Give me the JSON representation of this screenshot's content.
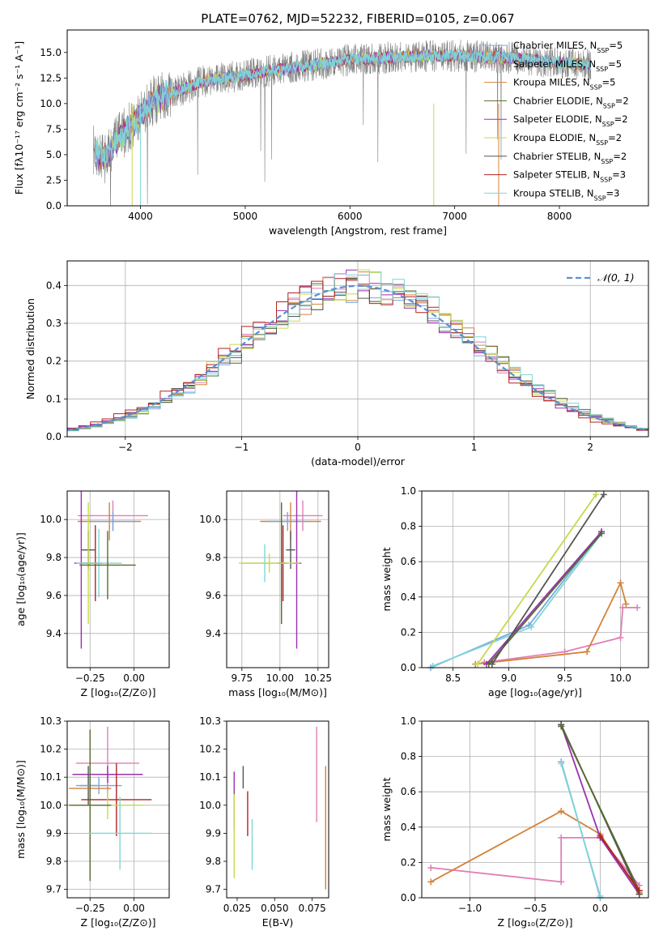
{
  "colors": {
    "c1": "#7aa6e0",
    "c2": "#e07fb5",
    "c3": "#d4823a",
    "c4": "#556b2f",
    "c5": "#9b30b0",
    "c6": "#c9d84a",
    "c7": "#555555",
    "c8": "#b22222",
    "c9": "#7fd6d6",
    "gauss": "#5b8fd6",
    "data": "#808080"
  },
  "chart_data": [
    {
      "id": "spectrum",
      "type": "line",
      "title": "PLATE=0762, MJD=52232, FIBERID=0105, z=0.067",
      "xlabel": "wavelength [Angstrom, rest frame]",
      "ylabel": "Flux [fλ10⁻¹⁷ erg cm⁻² s⁻¹ A⁻¹]",
      "xlim": [
        3300,
        8850
      ],
      "ylim": [
        0,
        17.2
      ],
      "xticks": [
        "4000",
        "5000",
        "6000",
        "7000",
        "8000"
      ],
      "yticks": [
        "0.0",
        "2.5",
        "5.0",
        "7.5",
        "10.0",
        "12.5",
        "15.0"
      ],
      "legend_position": "right",
      "series": [
        {
          "name": "Chabrier MILES, N",
          "nssp": "5",
          "color": "c1"
        },
        {
          "name": "Salpeter MILES, N",
          "nssp": "5",
          "color": "c2"
        },
        {
          "name": "Kroupa MILES, N",
          "nssp": "5",
          "color": "c3"
        },
        {
          "name": "Chabrier ELODIE, N",
          "nssp": "2",
          "color": "c4"
        },
        {
          "name": "Salpeter ELODIE, N",
          "nssp": "2",
          "color": "c5"
        },
        {
          "name": "Kroupa ELODIE, N",
          "nssp": "2",
          "color": "c6"
        },
        {
          "name": "Chabrier STELIB, N",
          "nssp": "2",
          "color": "c7"
        },
        {
          "name": "Salpeter STELIB, N",
          "nssp": "3",
          "color": "c8"
        },
        {
          "name": "Kroupa STELIB, N",
          "nssp": "3",
          "color": "c9"
        }
      ],
      "legend_eq": "=",
      "legend_sub": "SSP",
      "continuum": [
        [
          3550,
          5.5
        ],
        [
          3650,
          4.5
        ],
        [
          3800,
          6.8
        ],
        [
          3950,
          8.2
        ],
        [
          4100,
          10.2
        ],
        [
          4300,
          11.0
        ],
        [
          4600,
          12.2
        ],
        [
          5000,
          12.8
        ],
        [
          5500,
          13.6
        ],
        [
          6000,
          14.3
        ],
        [
          6500,
          14.6
        ],
        [
          7000,
          14.7
        ],
        [
          7500,
          14.5
        ],
        [
          8000,
          14.0
        ],
        [
          8300,
          13.8
        ]
      ]
    },
    {
      "id": "residuals",
      "type": "histogram",
      "xlabel": "(data-model)/error",
      "ylabel": "Normed distribution",
      "xlim": [
        -2.5,
        2.5
      ],
      "ylim": [
        0,
        0.465
      ],
      "xticks": [
        "−2",
        "−1",
        "0",
        "1",
        "2"
      ],
      "yticks": [
        "0.0",
        "0.1",
        "0.2",
        "0.3",
        "0.4"
      ],
      "grid": true,
      "legend_label": "𝒩(0, 1)",
      "legend_position": "top-right",
      "bin_width": 0.1
    },
    {
      "id": "age-vs-z",
      "type": "scatter",
      "xlabel": "Z [log₁₀(Z/Z⊙)]",
      "ylabel": "age  [log₁₀(age/yr)]",
      "xlim": [
        -0.38,
        0.2
      ],
      "ylim": [
        9.22,
        10.15
      ],
      "xticks": [
        "−0.25",
        "0.00"
      ],
      "yticks": [
        "9.4",
        "9.6",
        "9.8",
        "10.0"
      ],
      "grid": true,
      "points": [
        {
          "x": -0.12,
          "y": 10.02,
          "xerr": 0.2,
          "yerr": 0.08,
          "color": "c2"
        },
        {
          "x": -0.14,
          "y": 9.99,
          "xerr": 0.18,
          "yerr": 0.1,
          "color": "c3"
        },
        {
          "x": -0.12,
          "y": 9.99,
          "xerr": 0.13,
          "yerr": 0.05,
          "color": "c1"
        },
        {
          "x": -0.26,
          "y": 9.84,
          "xerr": 0.04,
          "yerr": 0.1,
          "color": "c7"
        },
        {
          "x": -0.22,
          "y": 9.77,
          "xerr": 0.04,
          "yerr": 0.2,
          "color": "c8"
        },
        {
          "x": -0.26,
          "y": 9.77,
          "xerr": 0.04,
          "yerr": 0.32,
          "color": "c6"
        },
        {
          "x": -0.3,
          "y": 9.77,
          "xerr": 0.04,
          "yerr": 0.45,
          "color": "c5"
        },
        {
          "x": -0.2,
          "y": 9.77,
          "xerr": 0.13,
          "yerr": 0.18,
          "color": "c9"
        },
        {
          "x": -0.15,
          "y": 9.76,
          "xerr": 0.16,
          "yerr": 0.18,
          "color": "c4"
        }
      ]
    },
    {
      "id": "age-vs-mass",
      "type": "scatter",
      "xlabel": "mass [log₁₀(M/M⊙)]",
      "ylabel": "",
      "xlim": [
        9.65,
        10.32
      ],
      "ylim": [
        9.22,
        10.15
      ],
      "xticks": [
        "9.75",
        "10.00",
        "10.25"
      ],
      "yticks": [
        "9.4",
        "9.6",
        "9.8",
        "10.0"
      ],
      "grid": true,
      "points": [
        {
          "x": 10.15,
          "y": 10.02,
          "xerr": 0.13,
          "yerr": 0.08,
          "color": "c2"
        },
        {
          "x": 10.07,
          "y": 9.99,
          "xerr": 0.2,
          "yerr": 0.1,
          "color": "c3"
        },
        {
          "x": 10.05,
          "y": 9.99,
          "xerr": 0.13,
          "yerr": 0.05,
          "color": "c1"
        },
        {
          "x": 10.07,
          "y": 9.84,
          "xerr": 0.03,
          "yerr": 0.1,
          "color": "c7"
        },
        {
          "x": 10.02,
          "y": 9.77,
          "xerr": 0.03,
          "yerr": 0.2,
          "color": "c8"
        },
        {
          "x": 10.01,
          "y": 9.77,
          "xerr": 0.03,
          "yerr": 0.32,
          "color": "c4"
        },
        {
          "x": 10.11,
          "y": 9.77,
          "xerr": 0.03,
          "yerr": 0.45,
          "color": "c5"
        },
        {
          "x": 9.9,
          "y": 9.77,
          "xerr": 0.15,
          "yerr": 0.1,
          "color": "c9"
        },
        {
          "x": 9.93,
          "y": 9.77,
          "xerr": 0.2,
          "yerr": 0.05,
          "color": "c6"
        }
      ]
    },
    {
      "id": "weight-vs-age",
      "type": "line",
      "xlabel": "age  [log₁₀(age/yr)]",
      "ylabel": "mass weight",
      "xlim": [
        8.22,
        10.25
      ],
      "ylim": [
        0,
        1
      ],
      "xticks": [
        "8.5",
        "9.0",
        "9.5",
        "10.0"
      ],
      "yticks": [
        "0.0",
        "0.2",
        "0.4",
        "0.6",
        "0.8",
        "1.0"
      ],
      "grid": true,
      "series": [
        {
          "color": "c1",
          "x": [
            8.3,
            9.18,
            9.83
          ],
          "y": [
            0.0,
            0.24,
            0.77
          ]
        },
        {
          "color": "c9",
          "x": [
            8.32,
            9.2,
            9.83
          ],
          "y": [
            0.01,
            0.23,
            0.76
          ]
        },
        {
          "color": "c2",
          "x": [
            8.78,
            9.5,
            10.0,
            10.02,
            10.15
          ],
          "y": [
            0.03,
            0.09,
            0.17,
            0.34,
            0.34
          ]
        },
        {
          "color": "c3",
          "x": [
            8.7,
            9.7,
            10.0,
            10.05
          ],
          "y": [
            0.02,
            0.09,
            0.48,
            0.36
          ]
        },
        {
          "color": "c5",
          "x": [
            8.8,
            9.83
          ],
          "y": [
            0.02,
            0.77
          ]
        },
        {
          "color": "c4",
          "x": [
            8.82,
            9.83
          ],
          "y": [
            0.02,
            0.76
          ]
        },
        {
          "color": "c6",
          "x": [
            8.72,
            9.78
          ],
          "y": [
            0.02,
            0.98
          ]
        },
        {
          "color": "c7",
          "x": [
            8.85,
            9.85
          ],
          "y": [
            0.02,
            0.98
          ]
        }
      ]
    },
    {
      "id": "mass-vs-z",
      "type": "scatter",
      "xlabel": "Z [log₁₀(Z/Z⊙)]",
      "ylabel": "mass [log₁₀(M/M⊙)]",
      "xlim": [
        -0.38,
        0.2
      ],
      "ylim": [
        9.67,
        10.3
      ],
      "xticks": [
        "−0.25",
        "0.00"
      ],
      "yticks": [
        "9.7",
        "9.8",
        "9.9",
        "10.0",
        "10.1",
        "10.2",
        "10.3"
      ],
      "grid": true,
      "points": [
        {
          "x": -0.15,
          "y": 10.15,
          "xerr": 0.18,
          "yerr": 0.13,
          "color": "c2"
        },
        {
          "x": -0.15,
          "y": 10.11,
          "xerr": 0.2,
          "yerr": 0.03,
          "color": "c5"
        },
        {
          "x": -0.26,
          "y": 10.07,
          "xerr": 0.05,
          "yerr": 0.07,
          "color": "c7"
        },
        {
          "x": -0.2,
          "y": 10.07,
          "xerr": 0.13,
          "yerr": 0.03,
          "color": "c1"
        },
        {
          "x": -0.25,
          "y": 10.06,
          "xerr": 0.12,
          "yerr": 0.04,
          "color": "c3"
        },
        {
          "x": -0.1,
          "y": 10.02,
          "xerr": 0.2,
          "yerr": 0.13,
          "color": "c8"
        },
        {
          "x": -0.15,
          "y": 10.0,
          "xerr": 0.2,
          "yerr": 0.05,
          "color": "c6"
        },
        {
          "x": -0.25,
          "y": 10.0,
          "xerr": 0.12,
          "yerr": 0.27,
          "color": "c4"
        },
        {
          "x": -0.08,
          "y": 9.9,
          "xerr": 0.18,
          "yerr": 0.13,
          "color": "c9"
        }
      ]
    },
    {
      "id": "mass-vs-ebv",
      "type": "scatter",
      "xlabel": "E(B-V)",
      "ylabel": "",
      "xlim": [
        0.018,
        0.086
      ],
      "ylim": [
        9.67,
        10.3
      ],
      "xticks": [
        "0.025",
        "0.050",
        "0.075"
      ],
      "yticks": [
        "9.7",
        "9.8",
        "9.9",
        "10.0",
        "10.1",
        "10.2",
        "10.3"
      ],
      "grid": false,
      "points": [
        {
          "x": 0.078,
          "y": 10.11,
          "xerr": 0,
          "yerr": 0.17,
          "color": "c2"
        },
        {
          "x": 0.084,
          "y": 9.92,
          "xerr": 0,
          "yerr": 0.22,
          "color": "c3"
        },
        {
          "x": 0.029,
          "y": 10.1,
          "xerr": 0,
          "yerr": 0.04,
          "color": "c7"
        },
        {
          "x": 0.032,
          "y": 9.97,
          "xerr": 0,
          "yerr": 0.08,
          "color": "c8"
        },
        {
          "x": 0.023,
          "y": 10.02,
          "xerr": 0,
          "yerr": 0.1,
          "color": "c5"
        },
        {
          "x": 0.023,
          "y": 9.89,
          "xerr": 0,
          "yerr": 0.15,
          "color": "c6"
        },
        {
          "x": 0.035,
          "y": 9.86,
          "xerr": 0,
          "yerr": 0.09,
          "color": "c9"
        }
      ]
    },
    {
      "id": "weight-vs-z",
      "type": "line",
      "xlabel": "Z [log₁₀(Z/Z⊙)]",
      "ylabel": "mass weight",
      "xlim": [
        -1.37,
        0.37
      ],
      "ylim": [
        0,
        1
      ],
      "xticks": [
        "−1.0",
        "−0.5",
        "0.0"
      ],
      "yticks": [
        "0.0",
        "0.2",
        "0.4",
        "0.6",
        "0.8",
        "1.0"
      ],
      "grid": true,
      "series": [
        {
          "color": "c2",
          "x": [
            -1.3,
            -0.3,
            -0.3,
            0.0,
            0.3
          ],
          "y": [
            0.17,
            0.09,
            0.34,
            0.34,
            0.07
          ]
        },
        {
          "color": "c3",
          "x": [
            -1.3,
            -0.3,
            0.0,
            0.3
          ],
          "y": [
            0.09,
            0.49,
            0.36,
            0.03
          ]
        },
        {
          "color": "c1",
          "x": [
            -0.3,
            0.0
          ],
          "y": [
            0.77,
            0.0
          ]
        },
        {
          "color": "c9",
          "x": [
            -0.3,
            0.0
          ],
          "y": [
            0.76,
            0.01
          ]
        },
        {
          "color": "c5",
          "x": [
            -0.3,
            0.0,
            0.3
          ],
          "y": [
            0.98,
            0.34,
            0.02
          ]
        },
        {
          "color": "c7",
          "x": [
            -0.3,
            0.3
          ],
          "y": [
            0.98,
            0.02
          ]
        },
        {
          "color": "c4",
          "x": [
            -0.3,
            0.3
          ],
          "y": [
            0.97,
            0.04
          ]
        },
        {
          "color": "c8",
          "x": [
            0.0,
            0.3
          ],
          "y": [
            0.35,
            0.04
          ]
        }
      ]
    }
  ]
}
